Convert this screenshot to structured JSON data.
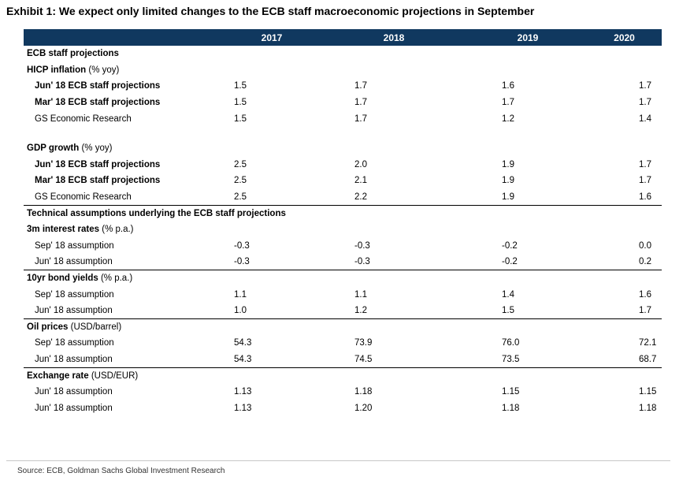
{
  "title": "Exhibit 1: We expect only limited changes to the ECB staff macroeconomic projections in September",
  "columns": [
    "",
    "2017",
    "2018",
    "2019",
    "2020"
  ],
  "sections": {
    "ecb_staff": "ECB staff projections",
    "technical": "Technical assumptions underlying the ECB staff projections"
  },
  "groups": {
    "hicp": {
      "label": "HICP inflation",
      "unit": "(% yoy)",
      "rows": [
        {
          "label": "Jun' 18 ECB staff projections",
          "values": [
            "1.5",
            "1.7",
            "1.6",
            "1.7"
          ]
        },
        {
          "label": "Mar' 18 ECB staff projections",
          "values": [
            "1.5",
            "1.7",
            "1.7",
            "1.7"
          ]
        },
        {
          "label": "GS Economic Research",
          "values": [
            "1.5",
            "1.7",
            "1.2",
            "1.4"
          ]
        }
      ]
    },
    "gdp": {
      "label": "GDP growth",
      "unit": "(% yoy)",
      "rows": [
        {
          "label": "Jun' 18 ECB staff projections",
          "values": [
            "2.5",
            "2.0",
            "1.9",
            "1.7"
          ]
        },
        {
          "label": "Mar' 18 ECB staff projections",
          "values": [
            "2.5",
            "2.1",
            "1.9",
            "1.7"
          ]
        },
        {
          "label": "GS Economic Research",
          "values": [
            "2.5",
            "2.2",
            "1.9",
            "1.6"
          ]
        }
      ]
    },
    "rates3m": {
      "label": "3m interest rates",
      "unit": "(% p.a.)",
      "rows": [
        {
          "label": "Sep' 18 assumption",
          "values": [
            "-0.3",
            "-0.3",
            "-0.2",
            "0.0"
          ]
        },
        {
          "label": "Jun' 18 assumption",
          "values": [
            "-0.3",
            "-0.3",
            "-0.2",
            "0.2"
          ]
        }
      ]
    },
    "bond10y": {
      "label": "10yr bond yields",
      "unit": "(% p.a.)",
      "rows": [
        {
          "label": "Sep' 18 assumption",
          "values": [
            "1.1",
            "1.1",
            "1.4",
            "1.6"
          ]
        },
        {
          "label": "Jun' 18 assumption",
          "values": [
            "1.0",
            "1.2",
            "1.5",
            "1.7"
          ]
        }
      ]
    },
    "oil": {
      "label": "Oil prices",
      "unit": "(USD/barrel)",
      "rows": [
        {
          "label": "Sep' 18 assumption",
          "values": [
            "54.3",
            "73.9",
            "76.0",
            "72.1"
          ]
        },
        {
          "label": "Jun' 18 assumption",
          "values": [
            "54.3",
            "74.5",
            "73.5",
            "68.7"
          ]
        }
      ]
    },
    "fx": {
      "label": "Exchange rate",
      "unit": "(USD/EUR)",
      "rows": [
        {
          "label": "Jun' 18 assumption",
          "values": [
            "1.13",
            "1.18",
            "1.15",
            "1.15"
          ]
        },
        {
          "label": "Jun' 18 assumption",
          "values": [
            "1.13",
            "1.20",
            "1.18",
            "1.18"
          ]
        }
      ]
    }
  },
  "source": "Source: ECB, Goldman Sachs Global Investment Research"
}
